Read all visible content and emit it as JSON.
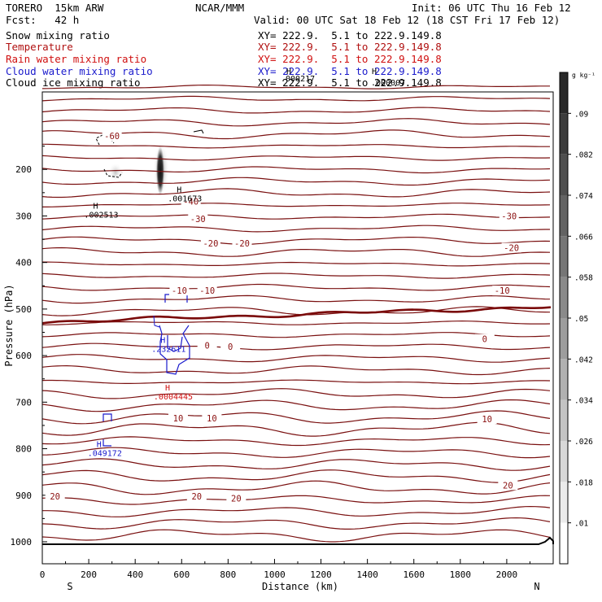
{
  "header": {
    "model": "TORERO  15km ARW",
    "forecast": "Fcst:   42 h",
    "center": "NCAR/MMM",
    "init": "Init: 06 UTC Thu 16 Feb 12",
    "valid": "Valid: 00 UTC Sat 18 Feb 12 (18 CST Fri 17 Feb 12)"
  },
  "fields": [
    {
      "name": "Snow mixing ratio",
      "color": "#000000",
      "xy": "XY= 222.9.  5.1 to 222.9.149.8"
    },
    {
      "name": "Temperature",
      "color": "#b01010",
      "xy": "XY= 222.9.  5.1 to 222.9.149.8"
    },
    {
      "name": "Rain water mixing ratio",
      "color": "#d01010",
      "xy": "XY= 222.9.  5.1 to 222.9.149.8"
    },
    {
      "name": "Cloud water mixing ratio",
      "color": "#1a1acc",
      "xy": "XY= 222.9.  5.1 to 222.9.149.8"
    },
    {
      "name": "Cloud ice mixing ratio",
      "color": "#000000",
      "xy": "XY= 222.9.  5.1 to 222.9.149.8"
    }
  ],
  "overlap_labels": {
    "a": "H",
    "b": ".000217",
    "c": "H",
    "d": ".000007"
  },
  "maxima": [
    {
      "h": "H",
      "value": ".001673",
      "x": 600,
      "p": 260,
      "color": "#000000"
    },
    {
      "h": "H",
      "value": ".002513",
      "x": 240,
      "p": 295,
      "color": "#000000"
    },
    {
      "h": "H",
      "value": ".232611",
      "x": 530,
      "p": 583,
      "color": "#1a1acc"
    },
    {
      "h": "H",
      "value": ".0004445",
      "x": 550,
      "p": 685,
      "color": "#d01010"
    },
    {
      "h": "H",
      "value": ".049172",
      "x": 255,
      "p": 807,
      "color": "#1a1acc"
    }
  ],
  "chart_data": {
    "type": "contour",
    "title": "Cross section: Snow, Temperature, Rain, Cloud water, Cloud ice",
    "xlabel": "Distance (km)",
    "ylabel": "Pressure (hPa)",
    "xlim": [
      0,
      2200
    ],
    "ylim": [
      1050,
      100
    ],
    "x_ticks": [
      0,
      200,
      400,
      600,
      800,
      1000,
      1200,
      1400,
      1600,
      1800,
      2000
    ],
    "y_ticks": [
      200,
      300,
      400,
      500,
      600,
      700,
      800,
      900,
      1000
    ],
    "endpoints": {
      "left": "S",
      "right": "N"
    },
    "colorbar": {
      "unit": "g kg⁻¹",
      "ticks": [
        ".01",
        ".018",
        ".026",
        ".034",
        ".042",
        ".05",
        ".058",
        ".066",
        ".074",
        ".082",
        ".09"
      ]
    },
    "temperature_labels": [
      {
        "text": "-60",
        "x": 300,
        "p": 130
      },
      {
        "text": "-40",
        "x": 640,
        "p": 270
      },
      {
        "text": "-30",
        "x": 670,
        "p": 308
      },
      {
        "text": "-30",
        "x": 2010,
        "p": 302
      },
      {
        "text": "-20",
        "x": 725,
        "p": 360
      },
      {
        "text": "-20",
        "x": 860,
        "p": 360
      },
      {
        "text": "-20",
        "x": 2020,
        "p": 370
      },
      {
        "text": "-10",
        "x": 590,
        "p": 462
      },
      {
        "text": "-10",
        "x": 710,
        "p": 462
      },
      {
        "text": "-10",
        "x": 1980,
        "p": 462
      },
      {
        "text": "0",
        "x": 710,
        "p": 580
      },
      {
        "text": "0",
        "x": 810,
        "p": 582
      },
      {
        "text": "0",
        "x": 1905,
        "p": 566
      },
      {
        "text": "10",
        "x": 585,
        "p": 736
      },
      {
        "text": "10",
        "x": 730,
        "p": 736
      },
      {
        "text": "10",
        "x": 1915,
        "p": 738
      },
      {
        "text": "20",
        "x": 55,
        "p": 904
      },
      {
        "text": "20",
        "x": 665,
        "p": 904
      },
      {
        "text": "20",
        "x": 835,
        "p": 908
      },
      {
        "text": "20",
        "x": 2005,
        "p": 880
      }
    ]
  }
}
